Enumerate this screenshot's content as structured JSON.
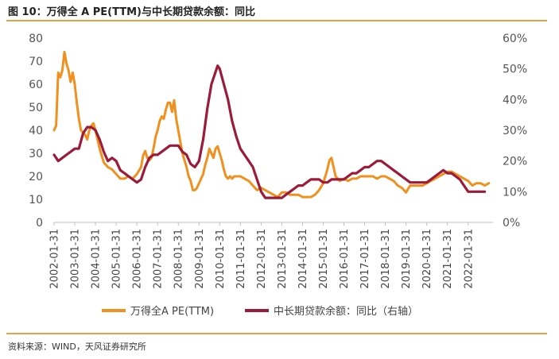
{
  "header": {
    "title": "图 10：万得全 A PE(TTM)与中长期贷款余额：同比"
  },
  "footer": {
    "source": "资料来源：WIND，天风证券研究所"
  },
  "chart_data": {
    "type": "line",
    "title": "图 10：万得全 A PE(TTM)与中长期贷款余额：同比",
    "x_ticks": [
      "2002-01-31",
      "2003-01-31",
      "2004-01-31",
      "2005-01-31",
      "2006-01-31",
      "2007-01-31",
      "2008-01-31",
      "2009-01-31",
      "2010-01-31",
      "2011-01-31",
      "2012-01-31",
      "2013-01-31",
      "2014-01-31",
      "2015-01-31",
      "2016-01-31",
      "2017-01-31",
      "2018-01-31",
      "2019-01-31",
      "2020-01-31",
      "2021-01-31",
      "2022-01-31"
    ],
    "y_left": {
      "ticks": [
        "0",
        "10",
        "20",
        "30",
        "40",
        "50",
        "60",
        "70",
        "80"
      ],
      "lim": [
        0,
        80
      ]
    },
    "y_right": {
      "ticks": [
        "0%",
        "10%",
        "20%",
        "30%",
        "40%",
        "50%",
        "60%"
      ],
      "lim": [
        0,
        60
      ]
    },
    "legend_position": "bottom",
    "series": [
      {
        "name": "万得全A PE(TTM)",
        "axis": "left",
        "color": "#f0901e",
        "points": [
          [
            2002.0,
            40
          ],
          [
            2002.1,
            42
          ],
          [
            2002.2,
            65
          ],
          [
            2002.3,
            63
          ],
          [
            2002.4,
            66
          ],
          [
            2002.5,
            74
          ],
          [
            2002.6,
            69
          ],
          [
            2002.7,
            66
          ],
          [
            2002.8,
            61
          ],
          [
            2002.9,
            65
          ],
          [
            2003.0,
            60
          ],
          [
            2003.1,
            52
          ],
          [
            2003.2,
            45
          ],
          [
            2003.3,
            40
          ],
          [
            2003.4,
            39
          ],
          [
            2003.5,
            38
          ],
          [
            2003.6,
            36
          ],
          [
            2003.7,
            40
          ],
          [
            2003.8,
            42
          ],
          [
            2003.9,
            43
          ],
          [
            2004.0,
            40
          ],
          [
            2004.2,
            32
          ],
          [
            2004.4,
            26
          ],
          [
            2004.6,
            24
          ],
          [
            2004.8,
            23
          ],
          [
            2005.0,
            21
          ],
          [
            2005.2,
            19
          ],
          [
            2005.4,
            19
          ],
          [
            2005.6,
            20
          ],
          [
            2005.8,
            19
          ],
          [
            2006.0,
            21
          ],
          [
            2006.2,
            24
          ],
          [
            2006.3,
            29
          ],
          [
            2006.4,
            31
          ],
          [
            2006.5,
            28
          ],
          [
            2006.6,
            27
          ],
          [
            2006.7,
            28
          ],
          [
            2006.8,
            32
          ],
          [
            2006.9,
            37
          ],
          [
            2007.0,
            40
          ],
          [
            2007.1,
            44
          ],
          [
            2007.2,
            46
          ],
          [
            2007.3,
            45
          ],
          [
            2007.4,
            49
          ],
          [
            2007.5,
            52
          ],
          [
            2007.6,
            52
          ],
          [
            2007.7,
            48
          ],
          [
            2007.8,
            53
          ],
          [
            2007.9,
            45
          ],
          [
            2008.0,
            40
          ],
          [
            2008.1,
            35
          ],
          [
            2008.2,
            30
          ],
          [
            2008.3,
            27
          ],
          [
            2008.4,
            24
          ],
          [
            2008.5,
            20
          ],
          [
            2008.6,
            18
          ],
          [
            2008.7,
            14
          ],
          [
            2008.8,
            14
          ],
          [
            2008.9,
            15
          ],
          [
            2009.0,
            17
          ],
          [
            2009.1,
            19
          ],
          [
            2009.2,
            21
          ],
          [
            2009.3,
            25
          ],
          [
            2009.4,
            28
          ],
          [
            2009.5,
            32
          ],
          [
            2009.6,
            30
          ],
          [
            2009.7,
            28
          ],
          [
            2009.8,
            32
          ],
          [
            2009.9,
            33
          ],
          [
            2010.0,
            30
          ],
          [
            2010.1,
            27
          ],
          [
            2010.2,
            23
          ],
          [
            2010.3,
            20
          ],
          [
            2010.4,
            19
          ],
          [
            2010.5,
            20
          ],
          [
            2010.6,
            19
          ],
          [
            2010.7,
            20
          ],
          [
            2010.8,
            20
          ],
          [
            2010.9,
            20
          ],
          [
            2011.0,
            20
          ],
          [
            2011.2,
            19
          ],
          [
            2011.4,
            18
          ],
          [
            2011.6,
            16
          ],
          [
            2011.8,
            14
          ],
          [
            2012.0,
            15
          ],
          [
            2012.2,
            14
          ],
          [
            2012.4,
            13
          ],
          [
            2012.6,
            12
          ],
          [
            2012.8,
            11
          ],
          [
            2013.0,
            13
          ],
          [
            2013.2,
            13
          ],
          [
            2013.4,
            12
          ],
          [
            2013.6,
            12
          ],
          [
            2013.8,
            12
          ],
          [
            2014.0,
            11
          ],
          [
            2014.2,
            11
          ],
          [
            2014.4,
            11
          ],
          [
            2014.6,
            12
          ],
          [
            2014.8,
            14
          ],
          [
            2015.0,
            17
          ],
          [
            2015.2,
            23
          ],
          [
            2015.3,
            27
          ],
          [
            2015.4,
            28
          ],
          [
            2015.5,
            24
          ],
          [
            2015.6,
            20
          ],
          [
            2015.8,
            18
          ],
          [
            2016.0,
            19
          ],
          [
            2016.2,
            18
          ],
          [
            2016.4,
            19
          ],
          [
            2016.6,
            19
          ],
          [
            2016.8,
            20
          ],
          [
            2017.0,
            20
          ],
          [
            2017.2,
            20
          ],
          [
            2017.4,
            20
          ],
          [
            2017.6,
            19
          ],
          [
            2017.8,
            20
          ],
          [
            2018.0,
            20
          ],
          [
            2018.2,
            19
          ],
          [
            2018.4,
            18
          ],
          [
            2018.6,
            16
          ],
          [
            2018.8,
            15
          ],
          [
            2019.0,
            13
          ],
          [
            2019.2,
            16
          ],
          [
            2019.4,
            16
          ],
          [
            2019.6,
            16
          ],
          [
            2019.8,
            16
          ],
          [
            2020.0,
            17
          ],
          [
            2020.2,
            18
          ],
          [
            2020.4,
            19
          ],
          [
            2020.6,
            20
          ],
          [
            2020.8,
            21
          ],
          [
            2021.0,
            22
          ],
          [
            2021.2,
            22
          ],
          [
            2021.4,
            21
          ],
          [
            2021.6,
            20
          ],
          [
            2021.8,
            19
          ],
          [
            2022.0,
            18
          ],
          [
            2022.2,
            16
          ],
          [
            2022.4,
            17
          ],
          [
            2022.6,
            17
          ],
          [
            2022.8,
            16
          ],
          [
            2023.0,
            17
          ]
        ]
      },
      {
        "name": "中长期贷款余额：同比（右轴）",
        "axis": "right",
        "color": "#9b1b3a",
        "points": [
          [
            2002.0,
            22
          ],
          [
            2002.2,
            20
          ],
          [
            2002.4,
            21
          ],
          [
            2002.6,
            22
          ],
          [
            2002.8,
            23
          ],
          [
            2003.0,
            24
          ],
          [
            2003.2,
            24
          ],
          [
            2003.4,
            29
          ],
          [
            2003.6,
            31
          ],
          [
            2003.8,
            31
          ],
          [
            2004.0,
            30
          ],
          [
            2004.2,
            27
          ],
          [
            2004.4,
            23
          ],
          [
            2004.6,
            20
          ],
          [
            2004.8,
            21
          ],
          [
            2005.0,
            20
          ],
          [
            2005.2,
            17
          ],
          [
            2005.4,
            16
          ],
          [
            2005.6,
            15
          ],
          [
            2005.8,
            14
          ],
          [
            2006.0,
            13
          ],
          [
            2006.2,
            14
          ],
          [
            2006.4,
            18
          ],
          [
            2006.6,
            21
          ],
          [
            2006.8,
            22
          ],
          [
            2007.0,
            22
          ],
          [
            2007.2,
            23
          ],
          [
            2007.4,
            24
          ],
          [
            2007.6,
            25
          ],
          [
            2007.8,
            25
          ],
          [
            2008.0,
            25
          ],
          [
            2008.2,
            23
          ],
          [
            2008.4,
            22
          ],
          [
            2008.6,
            19
          ],
          [
            2008.8,
            18
          ],
          [
            2009.0,
            20
          ],
          [
            2009.2,
            27
          ],
          [
            2009.4,
            37
          ],
          [
            2009.6,
            45
          ],
          [
            2009.8,
            49
          ],
          [
            2009.9,
            51
          ],
          [
            2010.0,
            50
          ],
          [
            2010.2,
            45
          ],
          [
            2010.4,
            40
          ],
          [
            2010.6,
            33
          ],
          [
            2010.8,
            28
          ],
          [
            2011.0,
            24
          ],
          [
            2011.2,
            22
          ],
          [
            2011.4,
            20
          ],
          [
            2011.6,
            18
          ],
          [
            2011.8,
            14
          ],
          [
            2012.0,
            10
          ],
          [
            2012.2,
            8
          ],
          [
            2012.4,
            8
          ],
          [
            2012.6,
            8
          ],
          [
            2012.8,
            8
          ],
          [
            2013.0,
            8
          ],
          [
            2013.2,
            9
          ],
          [
            2013.4,
            10
          ],
          [
            2013.6,
            11
          ],
          [
            2013.8,
            12
          ],
          [
            2014.0,
            12
          ],
          [
            2014.2,
            13
          ],
          [
            2014.4,
            14
          ],
          [
            2014.6,
            14
          ],
          [
            2014.8,
            14
          ],
          [
            2015.0,
            13
          ],
          [
            2015.2,
            13
          ],
          [
            2015.4,
            14
          ],
          [
            2015.6,
            14
          ],
          [
            2015.8,
            14
          ],
          [
            2016.0,
            14
          ],
          [
            2016.2,
            15
          ],
          [
            2016.4,
            16
          ],
          [
            2016.6,
            16
          ],
          [
            2016.8,
            17
          ],
          [
            2017.0,
            18
          ],
          [
            2017.2,
            18
          ],
          [
            2017.4,
            19
          ],
          [
            2017.6,
            20
          ],
          [
            2017.8,
            20
          ],
          [
            2018.0,
            19
          ],
          [
            2018.2,
            18
          ],
          [
            2018.4,
            17
          ],
          [
            2018.6,
            16
          ],
          [
            2018.8,
            15
          ],
          [
            2019.0,
            14
          ],
          [
            2019.2,
            13
          ],
          [
            2019.4,
            13
          ],
          [
            2019.6,
            13
          ],
          [
            2019.8,
            13
          ],
          [
            2020.0,
            13
          ],
          [
            2020.2,
            14
          ],
          [
            2020.4,
            15
          ],
          [
            2020.6,
            16
          ],
          [
            2020.8,
            17
          ],
          [
            2021.0,
            16
          ],
          [
            2021.2,
            16
          ],
          [
            2021.4,
            15
          ],
          [
            2021.6,
            14
          ],
          [
            2021.8,
            12
          ],
          [
            2022.0,
            10
          ],
          [
            2022.2,
            10
          ],
          [
            2022.4,
            10
          ],
          [
            2022.6,
            10
          ],
          [
            2022.8,
            10
          ]
        ]
      }
    ],
    "legend": [
      {
        "label": "万得全A PE(TTM)",
        "color": "#f0901e"
      },
      {
        "label": "中长期贷款余额：同比（右轴）",
        "color": "#9b1b3a"
      }
    ]
  }
}
